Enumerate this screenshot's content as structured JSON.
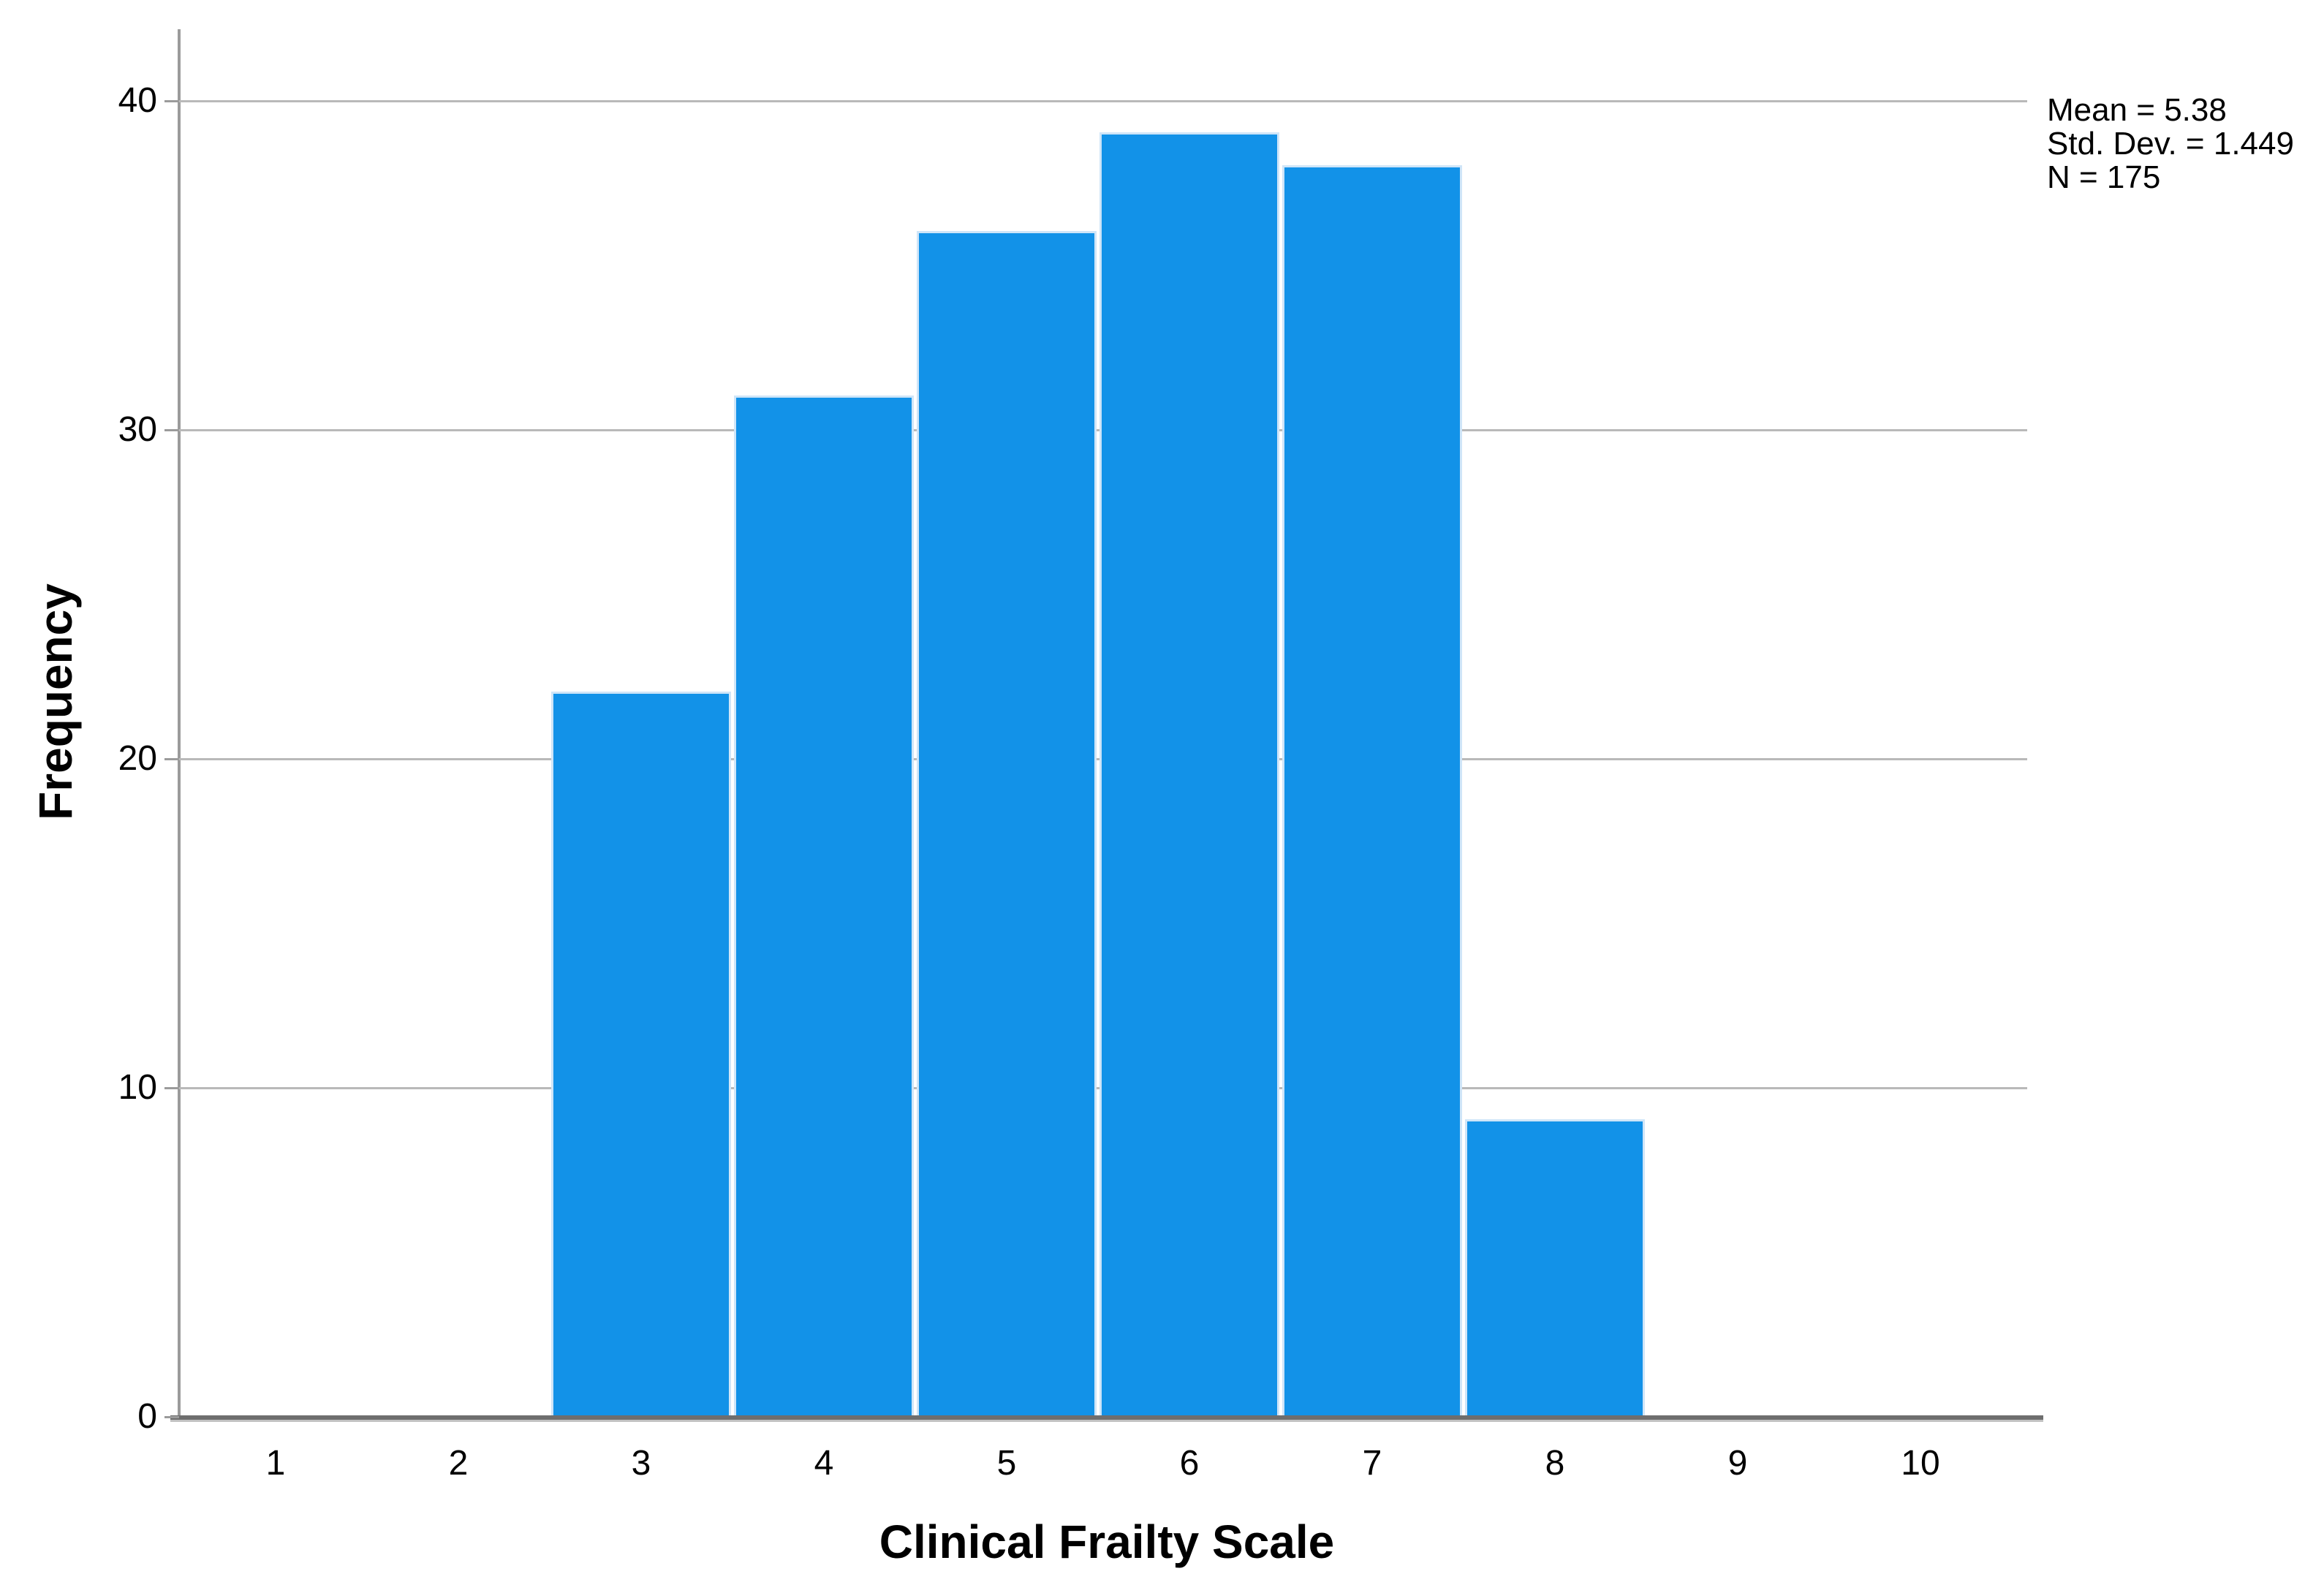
{
  "chart_data": {
    "type": "bar",
    "variant": "histogram",
    "title": "",
    "xlabel": "Clinical Frailty Scale",
    "ylabel": "Frequency",
    "categories": [
      1,
      2,
      3,
      4,
      5,
      6,
      7,
      8,
      9,
      10
    ],
    "values": [
      0,
      0,
      22,
      31,
      36,
      39,
      38,
      9,
      0,
      0
    ],
    "ylim": [
      0,
      40
    ],
    "yticks": [
      0,
      10,
      20,
      30,
      40
    ],
    "grid": "horizontal",
    "legend_position": "none",
    "annotations": [
      "Mean = 5.38",
      "Std. Dev. = 1.449",
      "N = 175"
    ],
    "colors": {
      "bar_fill": "#1292e8",
      "bar_edge": "#cfe5f8",
      "gridline": "#b9b9b9",
      "y_axis": "#9b9b9b",
      "x_axis": "#6e6e6e",
      "text": "#000000",
      "background": "#ffffff"
    }
  }
}
